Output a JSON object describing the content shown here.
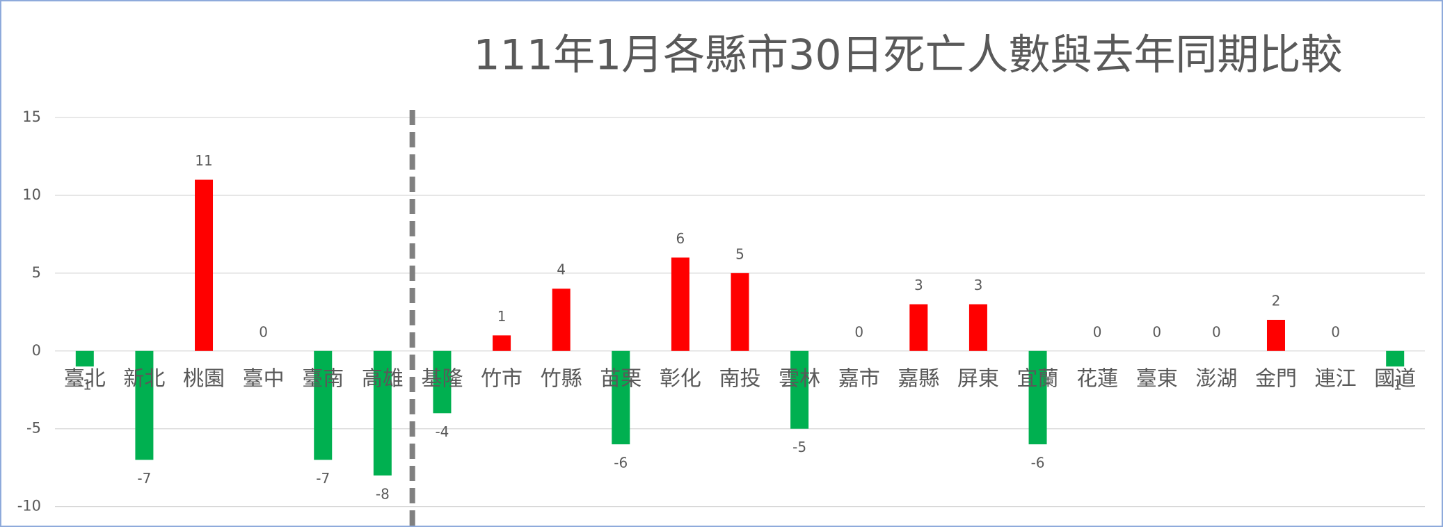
{
  "chart_data": {
    "type": "bar",
    "title": "111年1月各縣市30日死亡人數與去年同期比較",
    "categories": [
      "臺北",
      "新北",
      "桃園",
      "臺中",
      "臺南",
      "高雄",
      "基隆",
      "竹市",
      "竹縣",
      "苗栗",
      "彰化",
      "南投",
      "雲林",
      "嘉市",
      "嘉縣",
      "屏東",
      "宜蘭",
      "花蓮",
      "臺東",
      "澎湖",
      "金門",
      "連江",
      "國道"
    ],
    "values": [
      -1,
      -7,
      11,
      0,
      -7,
      -8,
      -4,
      1,
      4,
      -6,
      6,
      5,
      -5,
      0,
      3,
      3,
      -6,
      0,
      0,
      0,
      2,
      0,
      -1
    ],
    "positive_color": "#ff0000",
    "negative_color": "#00b050",
    "ylim": [
      -11,
      15
    ],
    "yticks": [
      -10,
      -5,
      0,
      5,
      10,
      15
    ],
    "grid": true,
    "separator_after": "高雄"
  }
}
